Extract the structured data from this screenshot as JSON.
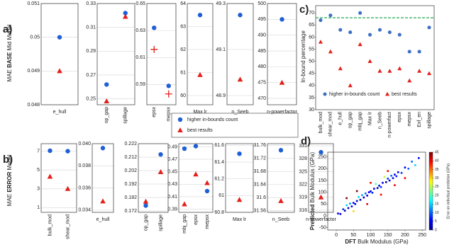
{
  "panel_labels": [
    "a)",
    "b)",
    "c)",
    "d)"
  ],
  "chart_data": [
    {
      "type": "dot",
      "ylabel": [
        "MAE ",
        "BASE",
        " Mid Model"
      ],
      "categories": [
        "e_hull"
      ],
      "ylim": [
        0.048,
        0.051
      ],
      "yticks": [
        0.048,
        0.049,
        0.05,
        0.051
      ],
      "grid": true,
      "legend": "below",
      "series": [
        {
          "name": "higher in-bounds count",
          "color": "#1f5fd6",
          "marker": "circle",
          "values": [
            0.05
          ]
        },
        {
          "name": "best results",
          "color": "#e3201b",
          "marker": "triangle",
          "values": [
            0.049
          ]
        }
      ]
    },
    {
      "type": "dot",
      "categories": [
        "op_gap",
        "spillage"
      ],
      "ylim": [
        0.245,
        0.33
      ],
      "yticks": [
        0.25,
        0.27,
        0.29,
        0.31,
        0.33
      ],
      "grid": true,
      "series": [
        {
          "color": "#1f5fd6",
          "marker": "circle",
          "values": [
            0.262,
            0.322
          ]
        },
        {
          "color": "#e3201b",
          "marker": "triangle",
          "values": [
            0.248,
            0.319
          ]
        }
      ]
    },
    {
      "type": "dot",
      "categories": [
        "epsx",
        "mepsx"
      ],
      "ylim": [
        0.575,
        0.65
      ],
      "yticks": [
        0.59,
        0.61,
        0.63,
        0.65
      ],
      "grid": true,
      "series": [
        {
          "color": "#1f5fd6",
          "marker": "circle",
          "values": [
            0.632,
            0.589
          ]
        },
        {
          "color": "#e3201b",
          "marker": "plus",
          "values": [
            0.616,
            0.583
          ]
        }
      ]
    },
    {
      "type": "dot",
      "categories": [
        "Max lr"
      ],
      "ylim": [
        59.6,
        64
      ],
      "yticks": [
        60,
        61,
        62,
        63,
        64
      ],
      "grid": true,
      "series": [
        {
          "color": "#1f5fd6",
          "marker": "circle",
          "values": [
            63.5
          ]
        },
        {
          "color": "#e3201b",
          "marker": "triangle",
          "values": [
            60.9
          ]
        }
      ]
    },
    {
      "type": "dot",
      "categories": [
        "n_Seeb"
      ],
      "ylim": [
        48.86,
        49.3
      ],
      "yticks": [
        48.9,
        49.1,
        49.3
      ],
      "grid": true,
      "series": [
        {
          "color": "#1f5fd6",
          "marker": "circle",
          "values": [
            49.25
          ]
        },
        {
          "color": "#e3201b",
          "marker": "triangle",
          "values": [
            48.97
          ]
        }
      ]
    },
    {
      "type": "dot",
      "categories": [
        "n-powerfactor"
      ],
      "ylim": [
        468,
        500
      ],
      "yticks": [
        470,
        475,
        480,
        485,
        490,
        495,
        500
      ],
      "grid": true,
      "series": [
        {
          "color": "#1f5fd6",
          "marker": "circle",
          "values": [
            495
          ]
        },
        {
          "color": "#e3201b",
          "marker": "triangle",
          "values": [
            475
          ]
        }
      ]
    },
    {
      "type": "dot",
      "ylabel": [
        "MAE ",
        "ERROR",
        " Model"
      ],
      "categories": [
        "bulk_mod",
        "shear_mod"
      ],
      "ylim": [
        0.5,
        7.8
      ],
      "yticks": [
        1,
        3,
        5,
        7
      ],
      "grid": true,
      "series": [
        {
          "color": "#1f5fd6",
          "marker": "circle",
          "values": [
            7.05,
            7.0
          ]
        },
        {
          "color": "#e3201b",
          "marker": "triangle",
          "values": [
            4.3,
            3.0
          ]
        }
      ]
    },
    {
      "type": "dot",
      "categories": [
        "e_hull"
      ],
      "ylim": [
        0.0338,
        0.04
      ],
      "yticks": [
        {
          "value": 0.034,
          "label": "0.034"
        },
        {
          "value": 0.036,
          "label": "0.036"
        },
        {
          "value": 0.038,
          "label": "0.038"
        },
        {
          "value": 0.04,
          "label": "0.040"
        }
      ],
      "grid": true,
      "series": [
        {
          "color": "#1f5fd6",
          "marker": "circle",
          "values": [
            0.0396
          ]
        },
        {
          "color": "#e3201b",
          "marker": "triangle",
          "values": [
            0.0348
          ]
        }
      ]
    },
    {
      "type": "dot",
      "categories": [
        "op_gap",
        "spillage"
      ],
      "ylim": [
        0.171,
        0.222
      ],
      "yticks": [
        0.172,
        0.182,
        0.192,
        0.202,
        0.212,
        0.222
      ],
      "grid": true,
      "series": [
        {
          "color": "#1f5fd6",
          "marker": "circle",
          "values": [
            0.176,
            0.214
          ]
        },
        {
          "color": "#e3201b",
          "marker": "triangle",
          "values": [
            0.179,
            0.201
          ]
        }
      ]
    },
    {
      "type": "dot",
      "categories": [
        "mbj_gap",
        "epsx",
        "mepsx"
      ],
      "ylim": [
        0.385,
        0.495
      ],
      "yticks": [
        0.39,
        0.41,
        0.43,
        0.45,
        0.47,
        0.49
      ],
      "grid": true,
      "series": [
        {
          "color": "#1f5fd6",
          "marker": "circle",
          "values": [
            0.487,
            0.491,
            0.419
          ]
        },
        {
          "color": "#e3201b",
          "marker": "triangle",
          "values": [
            0.398,
            0.446,
            0.432
          ]
        }
      ]
    },
    {
      "type": "dot",
      "categories": [
        "Max lr"
      ],
      "ylim": [
        60.8,
        61.62
      ],
      "yticks": [
        60.8,
        61,
        61.2,
        61.4,
        61.6
      ],
      "grid": true,
      "series": [
        {
          "color": "#1f5fd6",
          "marker": "circle",
          "values": [
            61.5
          ]
        },
        {
          "color": "#e3201b",
          "marker": "triangle",
          "values": [
            60.95
          ]
        }
      ]
    },
    {
      "type": "dot",
      "categories": [
        "n_Seeb"
      ],
      "ylim": [
        31.555,
        31.765
      ],
      "yticks": [
        31.56,
        31.6,
        31.64,
        31.68,
        31.72,
        31.76
      ],
      "grid": true,
      "series": [
        {
          "color": "#1f5fd6",
          "marker": "circle",
          "values": [
            31.745
          ]
        },
        {
          "color": "#e3201b",
          "marker": "triangle",
          "values": [
            31.59
          ]
        }
      ]
    },
    {
      "type": "dot",
      "categories": [
        "n-powerfactor"
      ],
      "ylim": [
        315.5,
        331.5
      ],
      "yticks": [
        316,
        319,
        322,
        325,
        328,
        331
      ],
      "grid": true,
      "series": [
        {
          "color": "#1f5fd6",
          "marker": "circle",
          "values": [
            329.5
          ]
        },
        {
          "color": "#e3201b",
          "marker": "triangle",
          "values": [
            319
          ]
        }
      ]
    },
    {
      "type": "dot",
      "ylabel": "In-bound percentage",
      "categories": [
        "bulk_mod",
        "shear_mod",
        "e_hull",
        "op_gap",
        "mbj_gap",
        "Max lr",
        "n_Seeb",
        "n-powerfact",
        "epsx",
        "mepsx",
        "Exf_en",
        "spillage"
      ],
      "ylim": [
        30,
        73
      ],
      "yticks": [
        30,
        35,
        40,
        45,
        50,
        55,
        60,
        65,
        70
      ],
      "grid": false,
      "legend": "inside-bottom",
      "reference_line": 68,
      "reference_color": "#22aa55",
      "series": [
        {
          "name": "higher in-bounds count",
          "color": "#3f6fc4",
          "marker": "circle",
          "values": [
            67,
            69,
            63,
            62,
            70,
            61,
            63,
            62,
            61,
            54,
            54,
            64
          ]
        },
        {
          "name": "best results",
          "color": "#e3201b",
          "marker": "triangle",
          "values": [
            58,
            54,
            47,
            40,
            57,
            50,
            46,
            46,
            47,
            42,
            46,
            45
          ]
        }
      ]
    },
    {
      "type": "scatter",
      "xlabel": [
        "DFT",
        " Bulk Modulus  (GPa)"
      ],
      "ylabel": [
        "Predicted",
        " Bulk Modulus (GPa)"
      ],
      "xlim": [
        -25,
        260
      ],
      "ylim": [
        -60,
        270
      ],
      "xticks": [
        0,
        50,
        100,
        150,
        200,
        250
      ],
      "yticks": [
        -50,
        0,
        50,
        100,
        150,
        200,
        250
      ],
      "colorbar_label": "Error on individual prediction (GPa)",
      "clim": [
        0,
        45
      ],
      "cticks": [
        0,
        5,
        10,
        15,
        20,
        25,
        30,
        35,
        40,
        45
      ],
      "x": [
        5,
        12,
        20,
        25,
        30,
        35,
        40,
        45,
        50,
        55,
        60,
        65,
        70,
        75,
        80,
        85,
        90,
        95,
        100,
        105,
        110,
        115,
        120,
        125,
        130,
        135,
        140,
        145,
        150,
        155,
        160,
        165,
        170,
        175,
        180,
        190,
        200,
        210,
        220,
        230,
        240,
        30,
        60,
        90,
        130,
        170,
        200,
        100,
        150,
        50
      ],
      "y": [
        10,
        8,
        28,
        22,
        45,
        33,
        52,
        40,
        55,
        50,
        63,
        80,
        68,
        88,
        78,
        95,
        86,
        100,
        104,
        98,
        115,
        135,
        118,
        128,
        122,
        140,
        165,
        143,
        158,
        150,
        170,
        160,
        175,
        168,
        185,
        182,
        205,
        200,
        230,
        215,
        245,
        75,
        105,
        50,
        90,
        130,
        160,
        140,
        190,
        20
      ],
      "error": [
        5,
        4,
        8,
        3,
        15,
        2,
        12,
        5,
        5,
        5,
        3,
        15,
        2,
        13,
        2,
        10,
        4,
        5,
        4,
        7,
        5,
        20,
        2,
        3,
        8,
        5,
        25,
        2,
        8,
        5,
        10,
        5,
        5,
        7,
        5,
        8,
        5,
        10,
        10,
        15,
        5,
        45,
        45,
        40,
        40,
        40,
        40,
        40,
        40,
        30
      ]
    }
  ]
}
